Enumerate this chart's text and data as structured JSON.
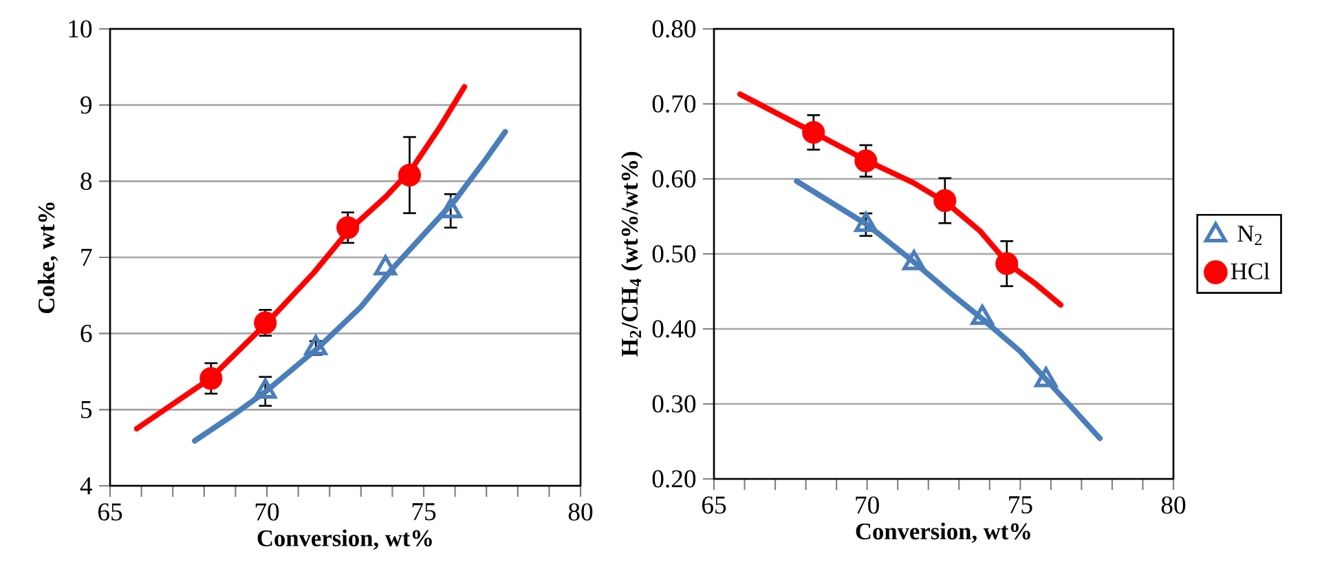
{
  "chart_data": [
    {
      "type": "scatter",
      "xlabel": "Conversion, wt%",
      "ylabel": "Coke, wt%",
      "xlim": [
        65,
        80
      ],
      "ylim": [
        4,
        10
      ],
      "xticks": [
        65,
        {
          "value": 66,
          "label": null
        },
        {
          "value": 67,
          "label": null
        },
        {
          "value": 68,
          "label": null
        },
        {
          "value": 69,
          "label": null
        },
        70,
        {
          "value": 71,
          "label": null
        },
        {
          "value": 72,
          "label": null
        },
        {
          "value": 73,
          "label": null
        },
        {
          "value": 74,
          "label": null
        },
        75,
        {
          "value": 76,
          "label": null
        },
        {
          "value": 77,
          "label": null
        },
        {
          "value": 78,
          "label": null
        },
        {
          "value": 79,
          "label": null
        },
        80
      ],
      "yticks": [
        4,
        5,
        6,
        7,
        8,
        9,
        10
      ],
      "grid": "y",
      "series": [
        {
          "marker": "triangle",
          "color": "#4a7ebb",
          "x": [
            69.95,
            71.56,
            73.78,
            75.86
          ],
          "values": [
            5.24,
            5.81,
            6.86,
            7.61
          ],
          "errors": [
            0.19,
            0.09,
            null,
            0.22
          ]
        },
        {
          "marker": "circle",
          "color": "#ff0000",
          "x": [
            68.22,
            69.95,
            72.58,
            74.55
          ],
          "values": [
            5.41,
            6.14,
            7.39,
            8.08
          ],
          "errors": [
            0.2,
            0.17,
            0.2,
            0.5
          ]
        },
        {
          "type": "line",
          "marker": "none",
          "color": "#4a7ebb",
          "x": [
            67.7,
            69,
            70,
            71.6,
            73,
            74,
            75,
            76,
            77,
            77.6
          ],
          "values": [
            4.59,
            4.95,
            5.25,
            5.8,
            6.35,
            6.85,
            7.3,
            7.75,
            8.3,
            8.65
          ]
        },
        {
          "type": "line",
          "marker": "none",
          "color": "#ff0000",
          "x": [
            65.85,
            68.2,
            70,
            71.5,
            72.6,
            73.8,
            74.6,
            75.5,
            76.3
          ],
          "values": [
            4.75,
            5.41,
            6.14,
            6.8,
            7.35,
            7.8,
            8.15,
            8.7,
            9.24
          ]
        }
      ]
    },
    {
      "type": "scatter",
      "xlabel": "Conversion, wt%",
      "ylabel": "H$_{2}$/CH$_{4}$ (wt%/wt%)",
      "xlim": [
        65,
        80
      ],
      "ylim": [
        0.2,
        0.8
      ],
      "xticks": [
        65,
        {
          "value": 66,
          "label": null
        },
        {
          "value": 67,
          "label": null
        },
        {
          "value": 68,
          "label": null
        },
        {
          "value": 69,
          "label": null
        },
        70,
        {
          "value": 71,
          "label": null
        },
        {
          "value": 72,
          "label": null
        },
        {
          "value": 73,
          "label": null
        },
        {
          "value": 74,
          "label": null
        },
        75,
        {
          "value": 76,
          "label": null
        },
        {
          "value": 77,
          "label": null
        },
        {
          "value": 78,
          "label": null
        },
        {
          "value": 79,
          "label": null
        },
        80
      ],
      "yticks": [
        {
          "value": 0.2,
          "label": "0.20"
        },
        {
          "value": 0.3,
          "label": "0.30"
        },
        {
          "value": 0.4,
          "label": "0.40"
        },
        {
          "value": 0.5,
          "label": "0.50"
        },
        {
          "value": 0.6,
          "label": "0.60"
        },
        {
          "value": 0.7,
          "label": "0.70"
        },
        {
          "value": 0.8,
          "label": "0.80"
        }
      ],
      "grid": "y",
      "legend": "right",
      "series": [
        {
          "name": "N$_{2}$",
          "marker": "triangle",
          "color": "#4a7ebb",
          "x": [
            69.96,
            71.53,
            73.76,
            75.84
          ],
          "values": [
            0.539,
            0.488,
            0.415,
            0.332
          ],
          "errors": [
            0.015,
            null,
            null,
            null
          ]
        },
        {
          "name": "HCl",
          "marker": "circle",
          "color": "#ff0000",
          "x": [
            68.25,
            69.96,
            72.54,
            74.56
          ],
          "values": [
            0.662,
            0.624,
            0.571,
            0.487
          ],
          "errors": [
            0.023,
            0.021,
            0.03,
            0.03
          ]
        },
        {
          "type": "line",
          "marker": "none",
          "color": "#4a7ebb",
          "x": [
            67.7,
            70,
            71.5,
            72.8,
            73.8,
            75,
            75.9,
            76.8,
            77.6
          ],
          "values": [
            0.597,
            0.539,
            0.49,
            0.445,
            0.412,
            0.37,
            0.33,
            0.29,
            0.254
          ]
        },
        {
          "type": "line",
          "marker": "none",
          "color": "#ff0000",
          "x": [
            65.85,
            68.25,
            70,
            71.5,
            72.6,
            73.7,
            74.6,
            75.5,
            76.32
          ],
          "values": [
            0.713,
            0.662,
            0.624,
            0.595,
            0.568,
            0.53,
            0.487,
            0.46,
            0.432
          ]
        }
      ]
    }
  ]
}
